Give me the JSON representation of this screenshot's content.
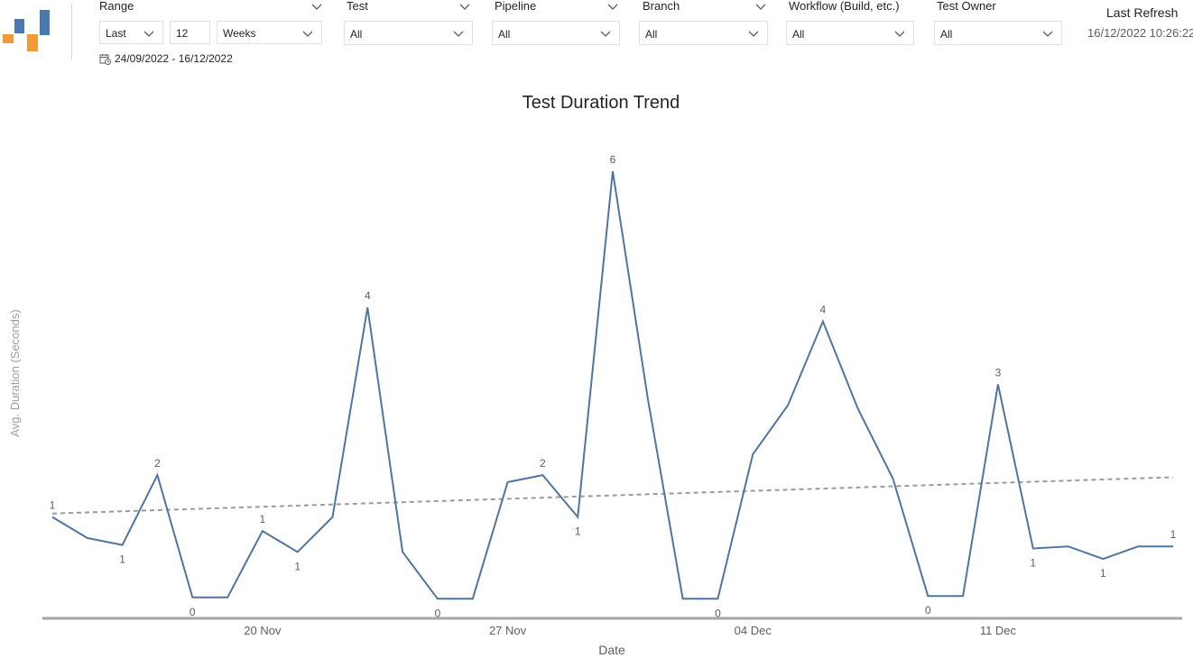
{
  "filters": {
    "range": {
      "title": "Range",
      "mode": "Last",
      "count": "12",
      "unit": "Weeks",
      "date_range": "24/09/2022 - 16/12/2022"
    },
    "test": {
      "title": "Test",
      "value": "All"
    },
    "pipeline": {
      "title": "Pipeline",
      "value": "All"
    },
    "branch": {
      "title": "Branch",
      "value": "All"
    },
    "workflow": {
      "title": "Workflow (Build, etc.)",
      "value": "All"
    },
    "owner": {
      "title": "Test Owner",
      "value": "All"
    }
  },
  "refresh": {
    "title": "Last Refresh",
    "timestamp": "16/12/2022 10:26:22"
  },
  "colors": {
    "line": "#4f75a0",
    "trend": "#9b9b9b",
    "axis": "#a6a6a6",
    "logo_blue": "#4a7aad",
    "logo_orange": "#f29a38"
  },
  "chart_data": {
    "type": "line",
    "title": "Test Duration Trend",
    "xlabel": "Date",
    "ylabel": "Avg. Duration (Seconds)",
    "x": [
      "2022-11-14",
      "2022-11-15",
      "2022-11-16",
      "2022-11-17",
      "2022-11-18",
      "2022-11-19",
      "2022-11-20",
      "2022-11-21",
      "2022-11-22",
      "2022-11-23",
      "2022-11-24",
      "2022-11-25",
      "2022-11-26",
      "2022-11-27",
      "2022-11-28",
      "2022-11-29",
      "2022-11-30",
      "2022-12-01",
      "2022-12-02",
      "2022-12-03",
      "2022-12-04",
      "2022-12-05",
      "2022-12-06",
      "2022-12-07",
      "2022-12-08",
      "2022-12-09",
      "2022-12-10",
      "2022-12-11",
      "2022-12-12",
      "2022-12-13",
      "2022-12-14",
      "2022-12-15",
      "2022-12-16"
    ],
    "x_ticks": [
      "20 Nov",
      "27 Nov",
      "04 Dec",
      "11 Dec"
    ],
    "x_tick_dates": [
      "2022-11-20",
      "2022-11-27",
      "2022-12-04",
      "2022-12-11"
    ],
    "series": [
      {
        "values": [
          1.3,
          1.0,
          0.9,
          1.9,
          0.15,
          0.15,
          1.1,
          0.8,
          1.3,
          4.3,
          0.8,
          0.13,
          0.13,
          1.8,
          1.9,
          1.3,
          6.25,
          3.0,
          0.13,
          0.13,
          2.2,
          2.9,
          4.1,
          2.85,
          1.85,
          0.17,
          0.17,
          3.2,
          0.85,
          0.88,
          0.7,
          0.88,
          0.88
        ],
        "labels": [
          "1",
          "",
          "1",
          "2",
          "0",
          "",
          "1",
          "1",
          "",
          "4",
          "",
          "0",
          "",
          "",
          "2",
          "1",
          "6",
          "",
          "",
          "0",
          "",
          "",
          "4",
          "",
          "",
          "0",
          "",
          "3",
          "1",
          "",
          "1",
          "",
          "1"
        ],
        "label_pos": [
          "above",
          "",
          "below",
          "above",
          "below",
          "",
          "above",
          "below",
          "",
          "above",
          "",
          "below",
          "",
          "",
          "above",
          "below",
          "above",
          "",
          "",
          "below",
          "",
          "",
          "above",
          "",
          "",
          "below",
          "",
          "above",
          "below",
          "",
          "below",
          "",
          "above"
        ]
      }
    ],
    "trendline": {
      "start": 1.35,
      "end": 1.87,
      "style": "dashed"
    },
    "ylim": [
      -0.15,
      6.25
    ],
    "grid": false,
    "legend": "none"
  }
}
